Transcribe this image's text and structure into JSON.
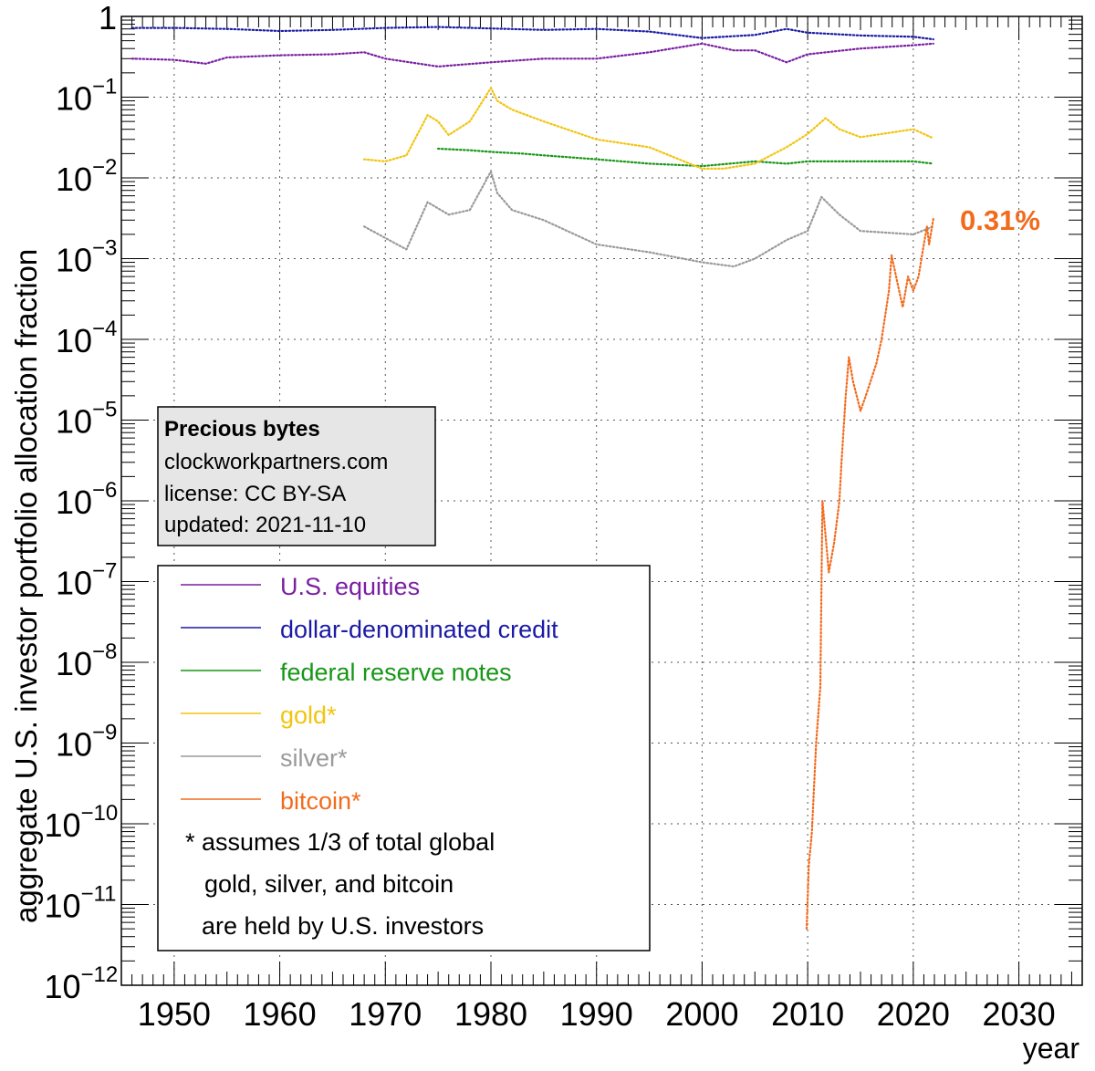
{
  "chart_data": {
    "type": "line",
    "xlabel": "year",
    "ylabel": "aggregate U.S. investor portfolio allocation fraction",
    "xlim": [
      1945,
      2036
    ],
    "ylim_log10": [
      -12,
      0
    ],
    "yscale": "log",
    "grid": true,
    "x_ticks": [
      1950,
      1960,
      1970,
      1980,
      1990,
      2000,
      2010,
      2020,
      2030
    ],
    "y_tick_labels": [
      {
        "exp": 0,
        "base": "1",
        "sup": ""
      },
      {
        "exp": -1,
        "base": "10",
        "sup": "−1"
      },
      {
        "exp": -2,
        "base": "10",
        "sup": "−2"
      },
      {
        "exp": -3,
        "base": "10",
        "sup": "−3"
      },
      {
        "exp": -4,
        "base": "10",
        "sup": "−4"
      },
      {
        "exp": -5,
        "base": "10",
        "sup": "−5"
      },
      {
        "exp": -6,
        "base": "10",
        "sup": "−6"
      },
      {
        "exp": -7,
        "base": "10",
        "sup": "−7"
      },
      {
        "exp": -8,
        "base": "10",
        "sup": "−8"
      },
      {
        "exp": -9,
        "base": "10",
        "sup": "−9"
      },
      {
        "exp": -10,
        "base": "10",
        "sup": "−10"
      },
      {
        "exp": -11,
        "base": "10",
        "sup": "−11"
      },
      {
        "exp": -12,
        "base": "10",
        "sup": "−12"
      }
    ],
    "series": [
      {
        "name": "dollar-denominated credit",
        "color": "#1a1aa6",
        "x": [
          1946,
          1950,
          1955,
          1960,
          1965,
          1970,
          1975,
          1980,
          1985,
          1990,
          1995,
          2000,
          2005,
          2008,
          2010,
          2015,
          2020,
          2021.9
        ],
        "y": [
          0.72,
          0.72,
          0.7,
          0.66,
          0.68,
          0.72,
          0.74,
          0.71,
          0.68,
          0.7,
          0.65,
          0.54,
          0.59,
          0.7,
          0.63,
          0.58,
          0.56,
          0.52
        ]
      },
      {
        "name": "U.S. equities",
        "color": "#7a1fa2",
        "x": [
          1946,
          1950,
          1953,
          1955,
          1960,
          1965,
          1968,
          1970,
          1975,
          1980,
          1985,
          1990,
          1995,
          2000,
          2003,
          2005,
          2008,
          2010,
          2015,
          2020,
          2021.9
        ],
        "y": [
          0.3,
          0.29,
          0.26,
          0.31,
          0.33,
          0.34,
          0.36,
          0.3,
          0.24,
          0.27,
          0.3,
          0.3,
          0.36,
          0.46,
          0.38,
          0.38,
          0.27,
          0.34,
          0.4,
          0.44,
          0.46
        ]
      },
      {
        "name": "federal reserve notes",
        "color": "#179617",
        "x": [
          1975,
          1978,
          1980,
          1983,
          1985,
          1990,
          1995,
          2000,
          2005,
          2008,
          2010,
          2015,
          2020,
          2021.9
        ],
        "y": [
          0.023,
          0.022,
          0.021,
          0.02,
          0.019,
          0.017,
          0.015,
          0.014,
          0.016,
          0.015,
          0.016,
          0.016,
          0.016,
          0.015
        ]
      },
      {
        "name": "gold*",
        "color": "#f2c40f",
        "x": [
          1968,
          1970,
          1972,
          1974,
          1975,
          1976,
          1978,
          1980.0,
          1980.6,
          1982,
          1985,
          1990,
          1995,
          2000,
          2002,
          2005,
          2008,
          2010,
          2011.7,
          2013,
          2015,
          2020,
          2021.9
        ],
        "y": [
          0.017,
          0.016,
          0.019,
          0.06,
          0.05,
          0.034,
          0.05,
          0.13,
          0.09,
          0.07,
          0.05,
          0.03,
          0.024,
          0.013,
          0.013,
          0.015,
          0.024,
          0.035,
          0.055,
          0.04,
          0.032,
          0.04,
          0.031
        ]
      },
      {
        "name": "silver*",
        "color": "#9a9a9a",
        "x": [
          1968,
          1970,
          1972,
          1974,
          1976,
          1978,
          1980.0,
          1980.6,
          1982,
          1985,
          1990,
          1995,
          2000,
          2003,
          2005,
          2008,
          2010,
          2011.3,
          2013,
          2015,
          2020,
          2021.9
        ],
        "y": [
          0.0025,
          0.0018,
          0.0013,
          0.005,
          0.0035,
          0.004,
          0.012,
          0.0065,
          0.004,
          0.003,
          0.0015,
          0.0012,
          0.0009,
          0.0008,
          0.001,
          0.0017,
          0.0022,
          0.0058,
          0.0035,
          0.0022,
          0.002,
          0.0025
        ]
      },
      {
        "name": "bitcoin*",
        "color": "#f26b1d",
        "x": [
          2009.9,
          2010.1,
          2010.4,
          2010.5,
          2010.8,
          2011.2,
          2011.4,
          2011.6,
          2012,
          2012.5,
          2013.0,
          2013.2,
          2013.6,
          2013.9,
          2014.3,
          2015.0,
          2015.5,
          2016.5,
          2017.0,
          2017.7,
          2017.95,
          2018.5,
          2019.0,
          2019.5,
          2020.0,
          2020.5,
          2021.0,
          2021.3,
          2021.5,
          2021.9
        ],
        "y": [
          5e-12,
          3e-11,
          8e-11,
          1.5e-10,
          1e-09,
          5e-09,
          1e-06,
          5e-07,
          1.3e-07,
          3e-07,
          1e-06,
          3e-06,
          2e-05,
          6e-05,
          3e-05,
          1.3e-05,
          2e-05,
          5e-05,
          0.0001,
          0.0004,
          0.0011,
          0.0005,
          0.00025,
          0.0006,
          0.0004,
          0.0006,
          0.0015,
          0.0025,
          0.0015,
          0.0031
        ]
      }
    ],
    "last_value_label": "0.31%",
    "footnote": [
      "* assumes 1/3 of total global",
      "gold, silver, and bitcoin",
      "are held by U.S. investors"
    ],
    "legend_position": "bottom-left"
  },
  "infobox": {
    "title": "Precious bytes",
    "site": "clockworkpartners.com",
    "license": "license: CC BY-SA",
    "updated": "updated: 2021-11-10"
  }
}
